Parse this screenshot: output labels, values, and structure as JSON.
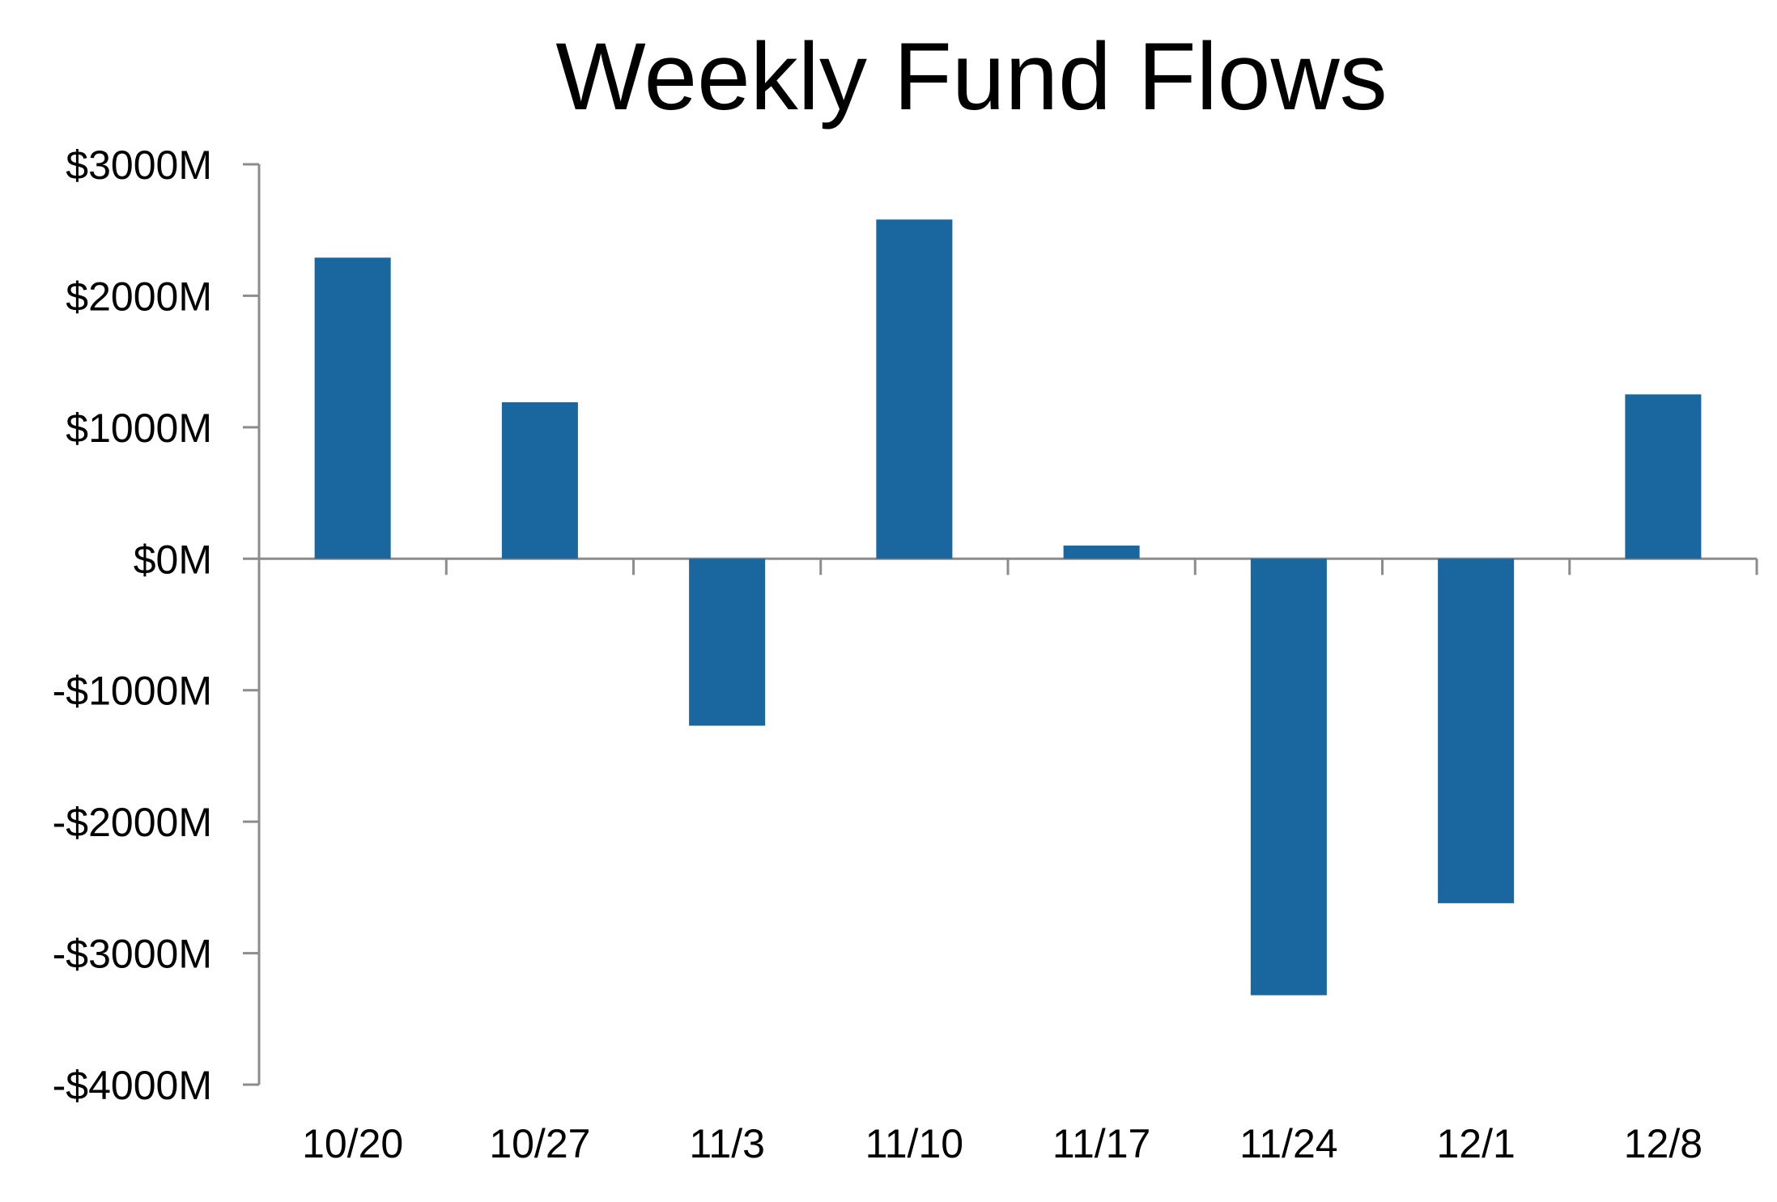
{
  "colors": {
    "bar": "#1a669e",
    "axis": "#8c8c8c",
    "text": "#000000",
    "background": "#ffffff"
  },
  "chart_data": {
    "type": "bar",
    "title": "Weekly Fund Flows",
    "xlabel": "",
    "ylabel": "",
    "categories": [
      "10/20",
      "10/27",
      "11/3",
      "11/10",
      "11/17",
      "11/24",
      "12/1",
      "12/8"
    ],
    "values": [
      2290,
      1190,
      -1270,
      2580,
      100,
      -3320,
      -2620,
      1250
    ],
    "ylim": [
      -4000,
      3000
    ],
    "yticks": [
      3000,
      2000,
      1000,
      0,
      -1000,
      -2000,
      -3000,
      -4000
    ],
    "ytick_labels": [
      "$3000M",
      "$2000M",
      "$1000M",
      "$0M",
      "-$1000M",
      "-$2000M",
      "-$3000M",
      "-$4000M"
    ],
    "grid": false,
    "legend": "none"
  }
}
